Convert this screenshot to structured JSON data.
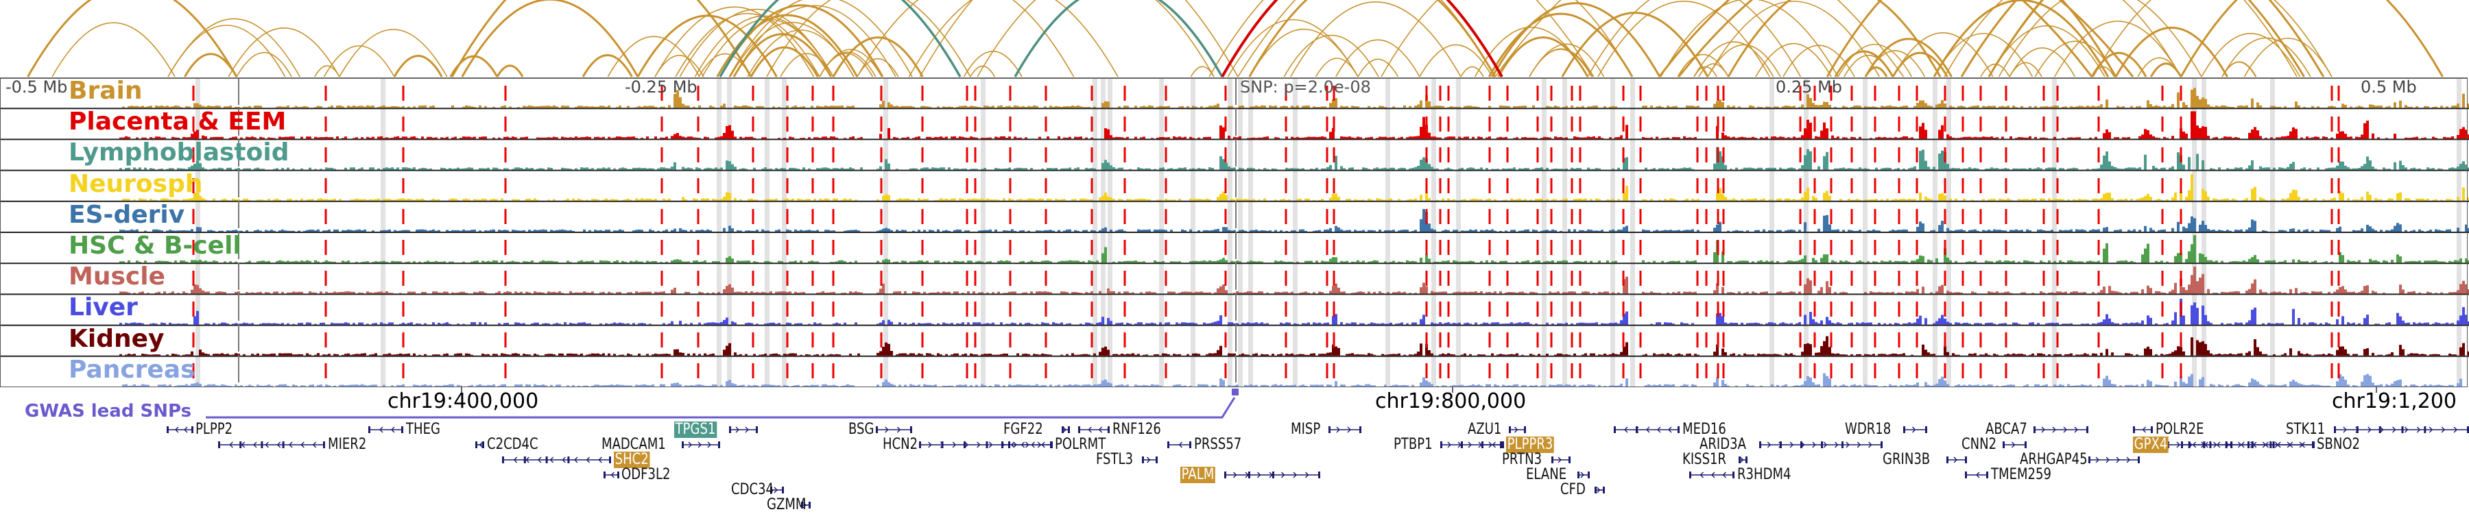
{
  "axis": {
    "left_label": "-0.5 Mb",
    "mid_left_label": "-0.25 Mb",
    "mid_right_label": "0.25 Mb",
    "right_label": "0.5 Mb",
    "snp_label": "SNP: p=2.0e-08",
    "coords": [
      "chr19:400,000",
      "chr19:800,000",
      "chr19:1,200"
    ]
  },
  "tracks": [
    {
      "label": "Brain",
      "color": "#c8922e"
    },
    {
      "label": "Placenta & EEM",
      "color": "#e00000"
    },
    {
      "label": "Lymphoblastoid",
      "color": "#4e9a8c"
    },
    {
      "label": "Neurosph",
      "color": "#f5d21f"
    },
    {
      "label": "ES-deriv",
      "color": "#3c73a8"
    },
    {
      "label": "HSC & B-cell",
      "color": "#4e9e4a"
    },
    {
      "label": "Muscle",
      "color": "#c0635a"
    },
    {
      "label": "Liver",
      "color": "#4a4de0"
    },
    {
      "label": "Kidney",
      "color": "#6b0000"
    },
    {
      "label": "Pancreas",
      "color": "#87a3e0"
    }
  ],
  "gwas": {
    "label": "GWAS lead SNPs",
    "color": "#6a5acd"
  },
  "colors": {
    "arc": "#c8922e",
    "arc_snp": "#d40000",
    "arc_teal": "#4e8f80",
    "dashed": "#ee0000",
    "highlight": "#e2e2e2",
    "gene": "#1c1c6e",
    "gene_hl": "#c8922e",
    "gene_hl_teal": "#4e9a8c"
  },
  "genes": [
    {
      "name": "PLPP2",
      "row": 0,
      "strand": "-",
      "hl": ""
    },
    {
      "name": "THEG",
      "row": 0,
      "strand": "-",
      "hl": ""
    },
    {
      "name": "MIER2",
      "row": 1,
      "strand": "-",
      "hl": ""
    },
    {
      "name": "C2CD4C",
      "row": 1,
      "strand": "-",
      "hl": ""
    },
    {
      "name": "TPGS1",
      "row": 0,
      "strand": "+",
      "hl": "teal"
    },
    {
      "name": "MADCAM1",
      "row": 1,
      "strand": "+",
      "hl": ""
    },
    {
      "name": "SHC2",
      "row": 2,
      "strand": "-",
      "hl": "gold"
    },
    {
      "name": "ODF3L2",
      "row": 3,
      "strand": "-",
      "hl": ""
    },
    {
      "name": "CDC34",
      "row": 4,
      "strand": "+",
      "hl": ""
    },
    {
      "name": "GZMM",
      "row": 5,
      "strand": "+",
      "hl": ""
    },
    {
      "name": "BSG",
      "row": 0,
      "strand": "+",
      "hl": ""
    },
    {
      "name": "HCN2",
      "row": 1,
      "strand": "+",
      "hl": ""
    },
    {
      "name": "FGF22",
      "row": 0,
      "strand": "+",
      "hl": ""
    },
    {
      "name": "RNF126",
      "row": 0,
      "strand": "-",
      "hl": ""
    },
    {
      "name": "POLRMT",
      "row": 1,
      "strand": "-",
      "hl": ""
    },
    {
      "name": "FSTL3",
      "row": 2,
      "strand": "+",
      "hl": ""
    },
    {
      "name": "PRSS57",
      "row": 1,
      "strand": "-",
      "hl": ""
    },
    {
      "name": "PALM",
      "row": 3,
      "strand": "+",
      "hl": "gold"
    },
    {
      "name": "MISP",
      "row": 0,
      "strand": "+",
      "hl": ""
    },
    {
      "name": "PTBP1",
      "row": 1,
      "strand": "+",
      "hl": ""
    },
    {
      "name": "AZU1",
      "row": 0,
      "strand": "+",
      "hl": ""
    },
    {
      "name": "PLPPR3",
      "row": 1,
      "strand": "-",
      "hl": "gold"
    },
    {
      "name": "PRTN3",
      "row": 2,
      "strand": "+",
      "hl": ""
    },
    {
      "name": "ELANE",
      "row": 3,
      "strand": "+",
      "hl": ""
    },
    {
      "name": "CFD",
      "row": 4,
      "strand": "+",
      "hl": ""
    },
    {
      "name": "MED16",
      "row": 0,
      "strand": "-",
      "hl": ""
    },
    {
      "name": "ARID3A",
      "row": 1,
      "strand": "+",
      "hl": ""
    },
    {
      "name": "KISS1R",
      "row": 2,
      "strand": "+",
      "hl": ""
    },
    {
      "name": "R3HDM4",
      "row": 3,
      "strand": "-",
      "hl": ""
    },
    {
      "name": "WDR18",
      "row": 0,
      "strand": "+",
      "hl": ""
    },
    {
      "name": "GRIN3B",
      "row": 2,
      "strand": "+",
      "hl": ""
    },
    {
      "name": "ABCA7",
      "row": 0,
      "strand": "+",
      "hl": ""
    },
    {
      "name": "CNN2",
      "row": 1,
      "strand": "+",
      "hl": ""
    },
    {
      "name": "ARHGAP45",
      "row": 2,
      "strand": "+",
      "hl": ""
    },
    {
      "name": "TMEM259",
      "row": 3,
      "strand": "-",
      "hl": ""
    },
    {
      "name": "POLR2E",
      "row": 0,
      "strand": "-",
      "hl": ""
    },
    {
      "name": "GPX4",
      "row": 1,
      "strand": "+",
      "hl": "gold"
    },
    {
      "name": "SBNO2",
      "row": 1,
      "strand": "-",
      "hl": ""
    },
    {
      "name": "STK11",
      "row": 0,
      "strand": "+",
      "hl": ""
    }
  ]
}
